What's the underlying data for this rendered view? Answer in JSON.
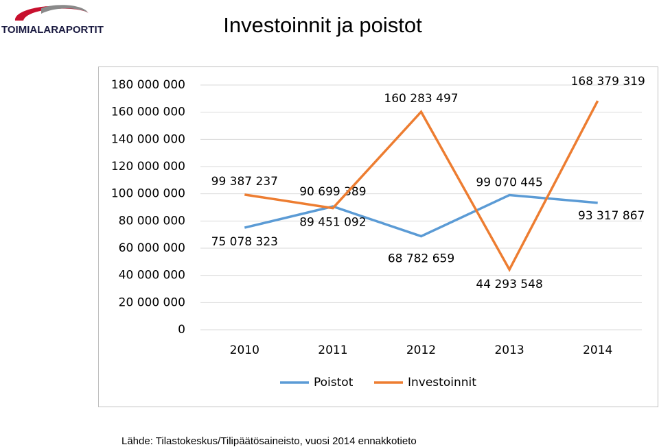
{
  "header": {
    "logo": "TOIMIALARAPORTIT",
    "title": "Investoinnit ja poistot"
  },
  "chart_data": {
    "type": "line",
    "categories": [
      "2010",
      "2011",
      "2012",
      "2013",
      "2014"
    ],
    "series": [
      {
        "name": "Poistot",
        "color": "#5b9bd5",
        "values": [
          75078323,
          90699389,
          68782659,
          99070445,
          93317867
        ],
        "value_labels": [
          "75 078 323",
          "90 699 389",
          "68 782 659",
          "99 070 445",
          "93 317 867"
        ]
      },
      {
        "name": "Investoinnit",
        "color": "#ed7d31",
        "values": [
          99387237,
          89451092,
          160283497,
          44293548,
          168379319
        ],
        "value_labels": [
          "99 387 237",
          "89 451 092",
          "160 283 497",
          "44 293 548",
          "168 379 319"
        ]
      }
    ],
    "ylim": [
      0,
      180000000
    ],
    "yticks": [
      0,
      {
        "value": 20000000,
        "label": "20 000 000"
      },
      {
        "value": 40000000,
        "label": "40 000 000"
      },
      {
        "value": 60000000,
        "label": "60 000 000"
      },
      {
        "value": 80000000,
        "label": "80 000 000"
      },
      {
        "value": 100000000,
        "label": "100 000 000"
      },
      {
        "value": 120000000,
        "label": "120 000 000"
      },
      {
        "value": 140000000,
        "label": "140 000 000"
      },
      {
        "value": 160000000,
        "label": "160 000 000"
      },
      {
        "value": 180000000,
        "label": "180 000 000"
      }
    ],
    "grid": true,
    "legend": "bottom"
  },
  "footer": {
    "source": "Lähde: Tilastokeskus/Tilipäätösaineisto, vuosi 2014 ennakkotieto"
  }
}
